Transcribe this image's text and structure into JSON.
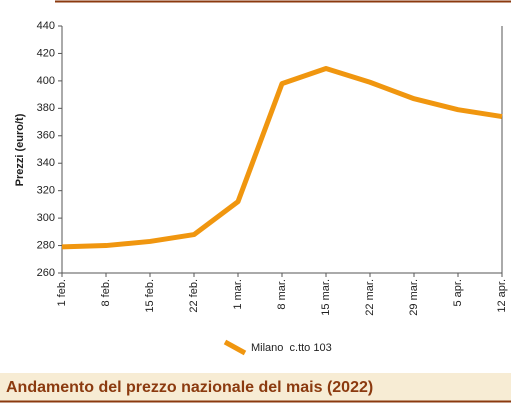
{
  "chart_data": {
    "type": "line",
    "title": "Andamento del prezzo nazionale del mais (2022)",
    "y_label": "Prezzi (euro/t)",
    "categories": [
      "1 feb.",
      "8 feb.",
      "15 feb.",
      "22 feb.",
      "1 mar.",
      "8 mar.",
      "15 mar.",
      "22 mar.",
      "29 mar.",
      "5 apr.",
      "12 apr."
    ],
    "series": [
      {
        "name": "Milano  c.tto 103",
        "color": "#f0960f",
        "values": [
          279,
          280,
          283,
          288,
          312,
          398,
          409,
          399,
          387,
          379,
          374
        ]
      }
    ],
    "ylim": [
      260,
      440
    ],
    "yticks": [
      260,
      280,
      300,
      320,
      340,
      360,
      380,
      400,
      420,
      440
    ]
  }
}
